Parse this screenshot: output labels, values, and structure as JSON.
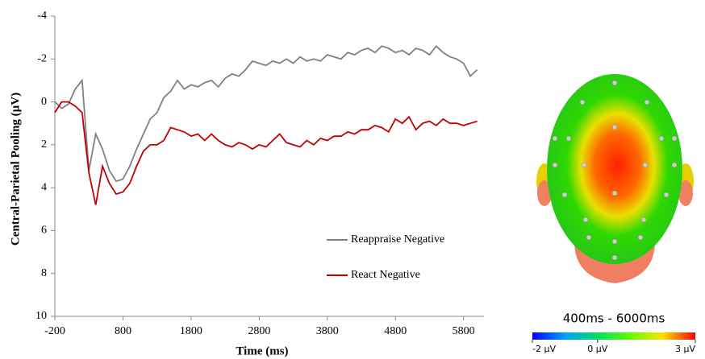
{
  "chart_data": [
    {
      "type": "line",
      "y_label": "Central-Parietal Pooling (µV)",
      "x_label": "Time (ms)",
      "x": [
        -200,
        -100,
        0,
        100,
        200,
        300,
        400,
        500,
        600,
        700,
        800,
        900,
        1000,
        1100,
        1200,
        1300,
        1400,
        1500,
        1600,
        1700,
        1800,
        1900,
        2000,
        2100,
        2200,
        2300,
        2400,
        2500,
        2600,
        2700,
        2800,
        2900,
        3000,
        3100,
        3200,
        3300,
        3400,
        3500,
        3600,
        3700,
        3800,
        3900,
        4000,
        4100,
        4200,
        4300,
        4400,
        4500,
        4600,
        4700,
        4800,
        4900,
        5000,
        5100,
        5200,
        5300,
        5400,
        5500,
        5600,
        5700,
        5800,
        5900,
        6000
      ],
      "series": [
        {
          "name": "Reappraise Negative",
          "color": "#808080",
          "values": [
            0.0,
            0.3,
            0.1,
            -0.6,
            -1.0,
            3.2,
            1.5,
            2.2,
            3.2,
            3.7,
            3.6,
            3.0,
            2.2,
            1.5,
            0.8,
            0.5,
            -0.2,
            -0.5,
            -1.0,
            -0.6,
            -0.8,
            -0.7,
            -0.9,
            -1.0,
            -0.7,
            -1.1,
            -1.3,
            -1.2,
            -1.5,
            -1.9,
            -1.8,
            -1.7,
            -1.9,
            -1.8,
            -2.0,
            -1.8,
            -2.1,
            -1.9,
            -2.0,
            -1.9,
            -2.2,
            -2.1,
            -2.0,
            -2.3,
            -2.2,
            -2.4,
            -2.5,
            -2.3,
            -2.6,
            -2.5,
            -2.3,
            -2.4,
            -2.2,
            -2.5,
            -2.4,
            -2.2,
            -2.6,
            -2.3,
            -2.1,
            -2.0,
            -1.8,
            -1.2,
            -1.5
          ]
        },
        {
          "name": "React Negative",
          "color": "#c00000",
          "values": [
            0.5,
            0.0,
            0.0,
            0.2,
            0.5,
            3.3,
            4.8,
            3.0,
            3.8,
            4.3,
            4.2,
            3.8,
            3.0,
            2.3,
            2.0,
            2.0,
            1.8,
            1.2,
            1.3,
            1.4,
            1.6,
            1.5,
            1.8,
            1.5,
            1.8,
            2.0,
            2.1,
            1.9,
            2.0,
            2.2,
            2.0,
            2.1,
            1.8,
            1.5,
            1.9,
            2.0,
            2.1,
            1.8,
            2.0,
            1.7,
            1.8,
            1.6,
            1.6,
            1.4,
            1.5,
            1.3,
            1.3,
            1.1,
            1.2,
            1.4,
            0.8,
            1.0,
            0.7,
            1.3,
            1.0,
            0.9,
            1.1,
            0.8,
            1.0,
            1.0,
            1.1,
            1.0,
            0.9
          ]
        }
      ],
      "xlim": [
        -200,
        6100
      ],
      "xticks": [
        -200,
        800,
        1800,
        2800,
        3800,
        4800,
        5800
      ],
      "ylim": [
        -4,
        10
      ],
      "yticks": [
        -4,
        -2,
        0,
        2,
        4,
        6,
        8,
        10
      ],
      "y_inverted": true,
      "legend": "lower right"
    },
    {
      "type": "topomap",
      "title": "400ms - 6000ms",
      "clim": [
        -2,
        3
      ],
      "cticks": [
        {
          "value": -2,
          "label": "-2 µV"
        },
        {
          "value": 0,
          "label": "0 µV"
        },
        {
          "value": 3,
          "label": "3 µV"
        }
      ]
    }
  ]
}
